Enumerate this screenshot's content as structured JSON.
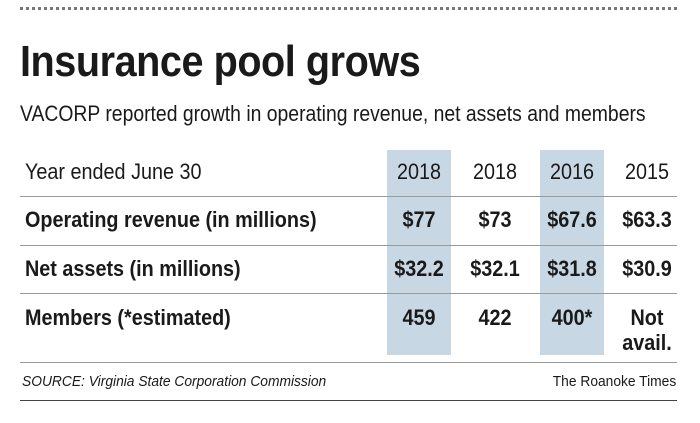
{
  "chart_data": {
    "type": "table",
    "title": "Insurance pool grows",
    "subtitle": "VACORP reported growth in operating revenue, net assets and members",
    "header": {
      "label": "Year ended June 30",
      "years": [
        "2018",
        "2018",
        "2016",
        "2015"
      ]
    },
    "highlighted_columns": [
      0,
      2
    ],
    "highlight_color": "#c7d7e4",
    "rows": [
      {
        "label": "Operating revenue (in millions)",
        "values": [
          "$77",
          "$73",
          "$67.6",
          "$63.3"
        ]
      },
      {
        "label": "Net assets (in millions)",
        "values": [
          "$32.2",
          "$32.1",
          "$31.8",
          "$30.9"
        ]
      },
      {
        "label": "Members (*estimated)",
        "values": [
          "459",
          "422",
          "400*",
          "Not"
        ],
        "extra": [
          "",
          "",
          "",
          "avail."
        ]
      }
    ],
    "source": "SOURCE: Virginia State Corporation Commission",
    "credit": "The Roanoke Times"
  }
}
